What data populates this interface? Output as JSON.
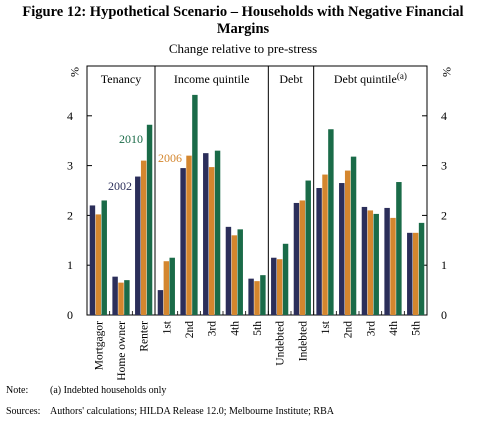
{
  "title_line1": "Figure 12: Hypothetical Scenario – Households with Negative Financial",
  "title_line2": "Margins",
  "subtitle": "Change relative to pre-stress",
  "footer": {
    "note_label": "Note:",
    "note_text": "(a) Indebted households only",
    "sources_label": "Sources:",
    "sources_text": "Authors' calculations; HILDA Release 12.0; Melbourne Institute; RBA"
  },
  "colors": {
    "2002": "#2b2e5a",
    "2006": "#d4862e",
    "2010": "#1a6b48"
  },
  "chart_data": {
    "type": "bar",
    "y_unit": "%",
    "ylim": [
      0,
      5
    ],
    "yticks": [
      0,
      1,
      2,
      3,
      4
    ],
    "panels": [
      {
        "label": "Tenancy",
        "categories": [
          "Mortgagor",
          "Home owner",
          "Renter"
        ]
      },
      {
        "label": "Income quintile",
        "categories": [
          "1st",
          "2nd",
          "3rd",
          "4th",
          "5th"
        ]
      },
      {
        "label": "Debt",
        "categories": [
          "Undebted",
          "Indebted"
        ]
      },
      {
        "label": "Debt quintile",
        "superscript": "(a)",
        "categories": [
          "1st",
          "2nd",
          "3rd",
          "4th",
          "5th"
        ]
      }
    ],
    "series": [
      {
        "name": "2002",
        "values": [
          2.2,
          0.77,
          2.78,
          0.5,
          2.95,
          3.25,
          1.77,
          0.73,
          1.15,
          2.25,
          2.55,
          2.65,
          2.17,
          2.15,
          1.65
        ]
      },
      {
        "name": "2006",
        "values": [
          2.02,
          0.65,
          3.1,
          1.08,
          3.2,
          2.97,
          1.6,
          0.68,
          1.12,
          2.3,
          2.82,
          2.9,
          2.1,
          1.95,
          1.65
        ]
      },
      {
        "name": "2010",
        "values": [
          2.3,
          0.7,
          3.82,
          1.15,
          4.42,
          3.3,
          1.72,
          0.8,
          1.43,
          2.7,
          3.73,
          3.18,
          2.03,
          2.67,
          1.85
        ]
      }
    ],
    "series_labels": [
      "2002",
      "2006",
      "2010"
    ]
  }
}
